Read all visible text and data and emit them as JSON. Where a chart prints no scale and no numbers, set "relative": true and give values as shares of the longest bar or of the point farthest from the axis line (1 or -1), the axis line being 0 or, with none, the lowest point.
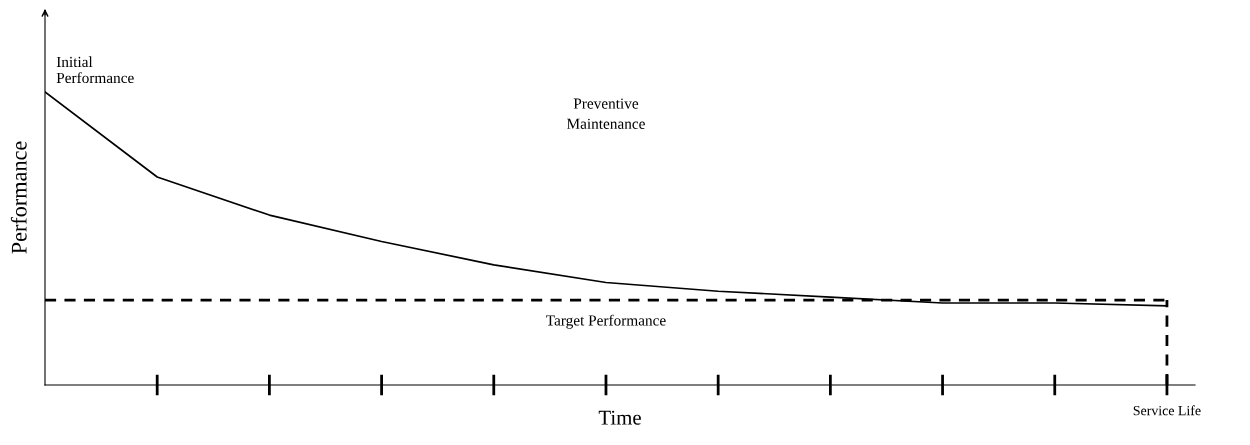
{
  "chart_data": {
    "type": "line",
    "relative": true,
    "xlabel": "Time",
    "ylabel": "Performance",
    "categories": [
      null,
      null,
      null,
      null,
      null,
      null,
      null,
      null,
      null,
      null,
      null
    ],
    "series": [
      {
        "color": "#000000",
        "line_style": "solid",
        "values": [
          1.0,
          0.71,
          0.58,
          0.49,
          0.41,
          0.35,
          0.32,
          0.3,
          0.28,
          0.28,
          0.27
        ]
      }
    ],
    "ref_lines": [
      {
        "axis": "y",
        "value": 0.29,
        "label": "Target Performance",
        "color": "#000000",
        "line_style": "dashed"
      }
    ],
    "annotations": [
      "Initial Performance",
      "Preventive Maintenance",
      "Service Life"
    ],
    "marker": "none",
    "legend": false
  }
}
